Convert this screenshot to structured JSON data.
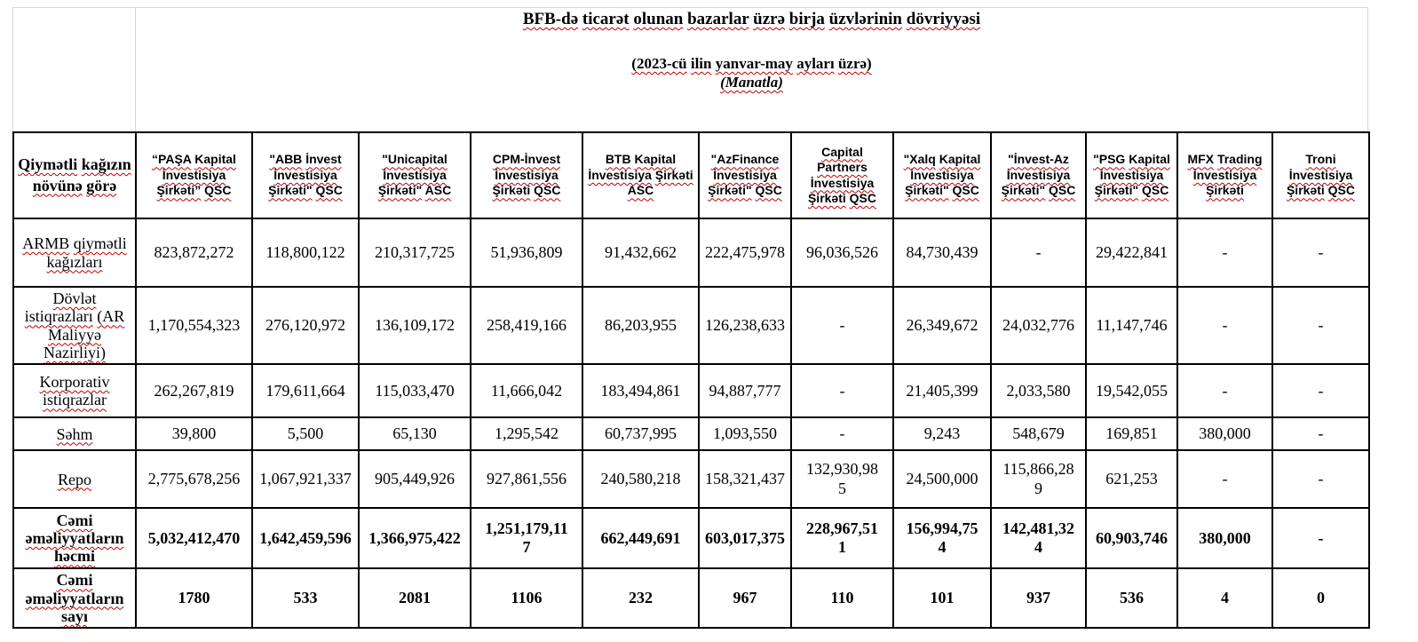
{
  "title": {
    "main": "BFB-də ticarət olunan bazarlar üzrə birja üzvlərinin dövriyyəsi",
    "subtitle": "(2023-cü ilin yanvar-may ayları üzrə)",
    "unit": "(Manatla)"
  },
  "table": {
    "corner_header": "Qiymətli kağızın növünə görə",
    "columns": [
      "“PAŞA Kapital İnvestisiya Şirkəti” QSC",
      "\"ABB İnvest İnvestisiya Şirkəti\" QSC",
      "\"Unicapital İnvestisiya Şirkəti\" ASC",
      "CPM-İnvest İnvestisiya Şirkəti QSC",
      "BTB Kapital İnvestisiya Şirkəti ASC",
      "\"AzFinance İnvestisiya Şirkəti\" QSC",
      "Capital Partners İnvestisiya Şirkəti QSC",
      "\"Xalq Kapital İnvestisiya Şirkəti\" QSC",
      "\"İnvest-Az İnvestisiya Şirkəti\" QSC",
      "\"PSG Kapital İnvestisiya Şirkəti\" QSC",
      "MFX Trading İnvestisiya Şirkəti",
      "Troni İnvestisiya Şirkəti QSC"
    ],
    "rows": [
      {
        "label": "ARMB qiymətli kağızları",
        "bold": false,
        "values": [
          "823,872,272",
          "118,800,122",
          "210,317,725",
          "51,936,809",
          "91,432,662",
          "222,475,978",
          "96,036,526",
          "84,730,439",
          "-",
          "29,422,841",
          "-",
          "-"
        ]
      },
      {
        "label": "Dövlət istiqrazları (AR Maliyyə Nazirliyi)",
        "bold": false,
        "values": [
          "1,170,554,323",
          "276,120,972",
          "136,109,172",
          "258,419,166",
          "86,203,955",
          "126,238,633",
          "-",
          "26,349,672",
          "24,032,776",
          "11,147,746",
          "-",
          "-"
        ]
      },
      {
        "label": "Korporativ istiqrazlar",
        "bold": false,
        "values": [
          "262,267,819",
          "179,611,664",
          "115,033,470",
          "11,666,042",
          "183,494,861",
          "94,887,777",
          "-",
          "21,405,399",
          "2,033,580",
          "19,542,055",
          "-",
          "-"
        ]
      },
      {
        "label": "Səhm",
        "bold": false,
        "values": [
          "39,800",
          "5,500",
          "65,130",
          "1,295,542",
          "60,737,995",
          "1,093,550",
          "-",
          "9,243",
          "548,679",
          "169,851",
          "380,000",
          "-"
        ]
      },
      {
        "label": "Repo",
        "bold": false,
        "values": [
          "2,775,678,256",
          "1,067,921,337",
          "905,449,926",
          "927,861,556",
          "240,580,218",
          "158,321,437",
          "132,930,98\n5",
          "24,500,000",
          "115,866,28\n9",
          "621,253",
          "-",
          "-"
        ]
      },
      {
        "label": "Cəmi əməliyyatların həcmi",
        "bold": true,
        "values": [
          "5,032,412,470",
          "1,642,459,596",
          "1,366,975,422",
          "1,251,179,11\n7",
          "662,449,691",
          "603,017,375",
          "228,967,51\n1",
          "156,994,75\n4",
          "142,481,32\n4",
          "60,903,746",
          "380,000",
          "-"
        ]
      },
      {
        "label": "Cəmi əməliyyatların sayı",
        "bold": true,
        "values": [
          "1780",
          "533",
          "2081",
          "1106",
          "232",
          "967",
          "110",
          "101",
          "937",
          "536",
          "4",
          "0"
        ]
      }
    ],
    "special_cells": [
      {
        "row": 1,
        "col": 6,
        "align": "top-right"
      },
      {
        "row": 2,
        "col": 6,
        "align": "top-right"
      },
      {
        "row": 3,
        "col": 6,
        "align": "top-right"
      },
      {
        "row": 4,
        "col": 0,
        "align": "bottom"
      }
    ]
  },
  "colors": {
    "border": "#000000",
    "ghost_border": "#d6d6d6",
    "squiggle": "#c00000",
    "text": "#000000",
    "background": "#ffffff"
  }
}
